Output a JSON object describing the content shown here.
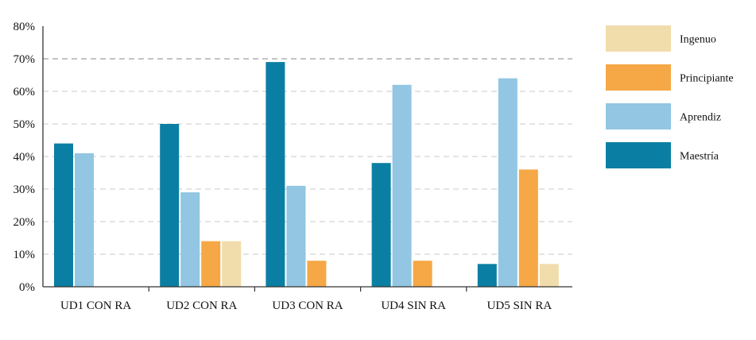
{
  "chart_data": {
    "type": "bar",
    "categories": [
      "UD1 CON RA",
      "UD2 CON RA",
      "UD3 CON RA",
      "UD4 SIN RA",
      "UD5 SIN RA"
    ],
    "series": [
      {
        "name": "Maestría",
        "color": "#0b7fa3",
        "values": [
          44,
          50,
          69,
          38,
          7
        ]
      },
      {
        "name": "Aprendiz",
        "color": "#92c6e2",
        "values": [
          41,
          29,
          31,
          62,
          64
        ]
      },
      {
        "name": "Principiante",
        "color": "#f5a845",
        "values": [
          0,
          14,
          8,
          8,
          36
        ]
      },
      {
        "name": "Ingenuo",
        "color": "#f1dcab",
        "values": [
          0,
          14,
          0,
          0,
          7
        ]
      }
    ],
    "legend_order": [
      "Ingenuo",
      "Principiante",
      "Aprendiz",
      "Maestría"
    ],
    "ylim": [
      0,
      80
    ],
    "yticks": [
      "0%",
      "10%",
      "20%",
      "30%",
      "40%",
      "50%",
      "60%",
      "70%",
      "80%"
    ],
    "grid": "dashed horizontal",
    "legend_position": "right"
  }
}
